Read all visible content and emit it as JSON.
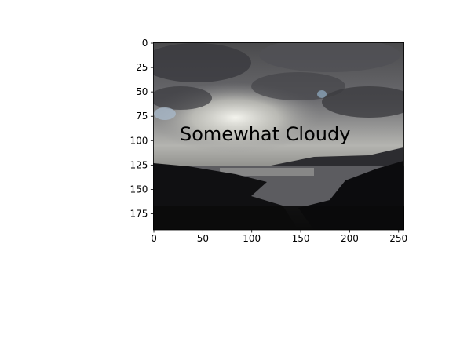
{
  "chart_data": {
    "type": "image",
    "annotation": "Somewhat Cloudy",
    "annotation_color": "#ff0000",
    "xlim": [
      -0.5,
      255.5
    ],
    "ylim": [
      191.5,
      -0.5
    ],
    "xticks": [
      0,
      50,
      100,
      150,
      200,
      250
    ],
    "yticks": [
      0,
      25,
      50,
      75,
      100,
      125,
      150,
      175
    ]
  }
}
